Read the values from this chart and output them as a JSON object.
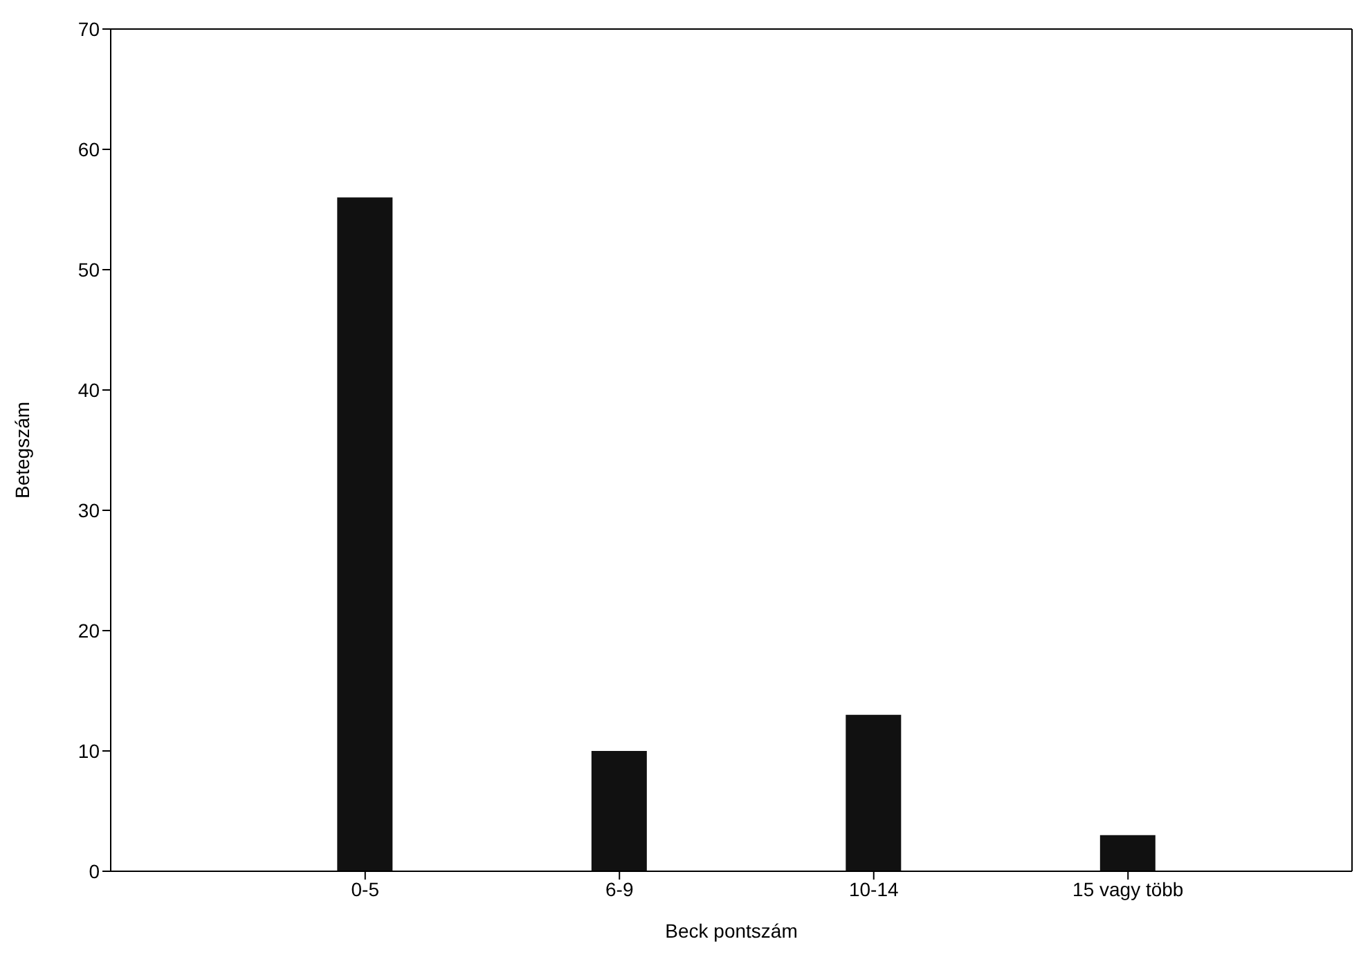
{
  "chart_data": {
    "type": "bar",
    "xlabel": "Beck pontszám",
    "ylabel": "Betegszám",
    "categories": [
      "0-5",
      "6-9",
      "10-14",
      "15 vagy több"
    ],
    "values": [
      56,
      10,
      13,
      3
    ],
    "color": "#111111",
    "ylim": [
      0,
      70
    ],
    "yticks": [
      0,
      10,
      20,
      30,
      40,
      50,
      60,
      70
    ],
    "grid": false,
    "legend": false
  }
}
